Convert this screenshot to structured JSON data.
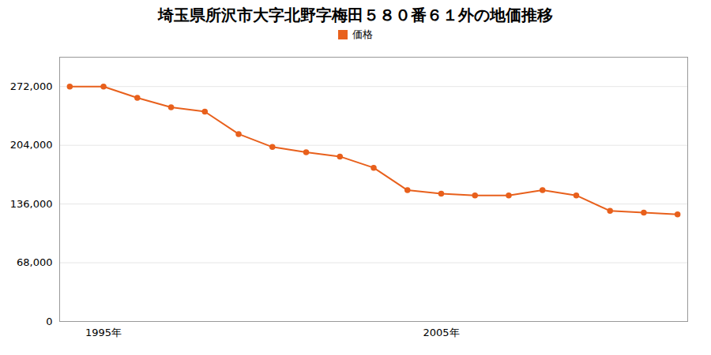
{
  "chart_data": {
    "type": "line",
    "title": "埼玉県所沢市大字北野字梅田５８０番６１外の地価推移",
    "x": [
      1994,
      1995,
      1996,
      1997,
      1998,
      1999,
      2000,
      2001,
      2002,
      2003,
      2004,
      2005,
      2006,
      2007,
      2008,
      2009,
      2010,
      2011,
      2012
    ],
    "series": [
      {
        "name": "価格",
        "color": "#E8601C",
        "marker": "circle",
        "line_style": "solid",
        "values": [
          272000,
          272000,
          259000,
          248000,
          243000,
          217000,
          202000,
          196000,
          191000,
          178000,
          152000,
          148000,
          146000,
          146000,
          152000,
          146000,
          128000,
          126000,
          124000
        ]
      }
    ],
    "xlim": [
      1993.7,
      2012.3
    ],
    "xticks": [
      {
        "value": 1995,
        "label": "1995年"
      },
      {
        "value": 2005,
        "label": "2005年"
      }
    ],
    "ylim": [
      0,
      306000
    ],
    "yticks": [
      0,
      {
        "value": 68000,
        "label": "68,000"
      },
      {
        "value": 136000,
        "label": "136,000"
      },
      {
        "value": 204000,
        "label": "204,000"
      },
      {
        "value": 272000,
        "label": "272,000"
      }
    ],
    "grid": "y",
    "legend": "top"
  }
}
